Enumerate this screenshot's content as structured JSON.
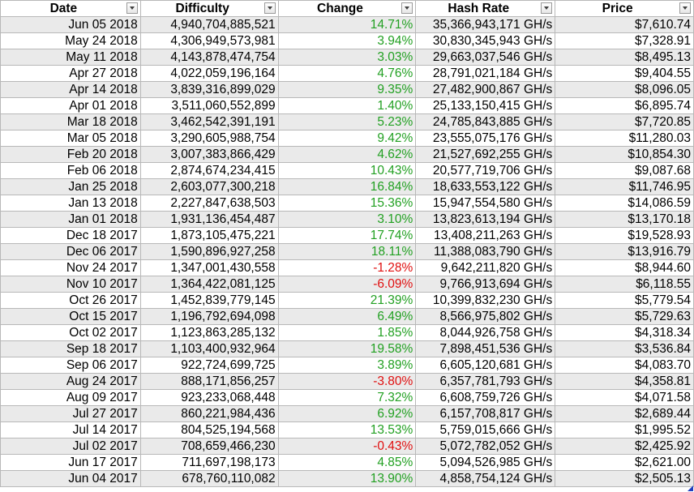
{
  "header": {
    "date": "Date",
    "difficulty": "Difficulty",
    "change": "Change",
    "hash_rate": "Hash Rate",
    "price": "Price"
  },
  "rows": [
    {
      "date": "Jun 05 2018",
      "difficulty": "4,940,704,885,521",
      "change": "14.71%",
      "hash_rate": "35,366,943,171 GH/s",
      "price": "$7,610.74"
    },
    {
      "date": "May 24 2018",
      "difficulty": "4,306,949,573,981",
      "change": "3.94%",
      "hash_rate": "30,830,345,943 GH/s",
      "price": "$7,328.91"
    },
    {
      "date": "May 11 2018",
      "difficulty": "4,143,878,474,754",
      "change": "3.03%",
      "hash_rate": "29,663,037,546 GH/s",
      "price": "$8,495.13"
    },
    {
      "date": "Apr 27 2018",
      "difficulty": "4,022,059,196,164",
      "change": "4.76%",
      "hash_rate": "28,791,021,184 GH/s",
      "price": "$9,404.55"
    },
    {
      "date": "Apr 14 2018",
      "difficulty": "3,839,316,899,029",
      "change": "9.35%",
      "hash_rate": "27,482,900,867 GH/s",
      "price": "$8,096.05"
    },
    {
      "date": "Apr 01 2018",
      "difficulty": "3,511,060,552,899",
      "change": "1.40%",
      "hash_rate": "25,133,150,415 GH/s",
      "price": "$6,895.74"
    },
    {
      "date": "Mar 18 2018",
      "difficulty": "3,462,542,391,191",
      "change": "5.23%",
      "hash_rate": "24,785,843,885 GH/s",
      "price": "$7,720.85"
    },
    {
      "date": "Mar 05 2018",
      "difficulty": "3,290,605,988,754",
      "change": "9.42%",
      "hash_rate": "23,555,075,176 GH/s",
      "price": "$11,280.03"
    },
    {
      "date": "Feb 20 2018",
      "difficulty": "3,007,383,866,429",
      "change": "4.62%",
      "hash_rate": "21,527,692,255 GH/s",
      "price": "$10,854.30"
    },
    {
      "date": "Feb 06 2018",
      "difficulty": "2,874,674,234,415",
      "change": "10.43%",
      "hash_rate": "20,577,719,706 GH/s",
      "price": "$9,087.68"
    },
    {
      "date": "Jan 25 2018",
      "difficulty": "2,603,077,300,218",
      "change": "16.84%",
      "hash_rate": "18,633,553,122 GH/s",
      "price": "$11,746.95"
    },
    {
      "date": "Jan 13 2018",
      "difficulty": "2,227,847,638,503",
      "change": "15.36%",
      "hash_rate": "15,947,554,580 GH/s",
      "price": "$14,086.59"
    },
    {
      "date": "Jan 01 2018",
      "difficulty": "1,931,136,454,487",
      "change": "3.10%",
      "hash_rate": "13,823,613,194 GH/s",
      "price": "$13,170.18"
    },
    {
      "date": "Dec 18 2017",
      "difficulty": "1,873,105,475,221",
      "change": "17.74%",
      "hash_rate": "13,408,211,263 GH/s",
      "price": "$19,528.93"
    },
    {
      "date": "Dec 06 2017",
      "difficulty": "1,590,896,927,258",
      "change": "18.11%",
      "hash_rate": "11,388,083,790 GH/s",
      "price": "$13,916.79"
    },
    {
      "date": "Nov 24 2017",
      "difficulty": "1,347,001,430,558",
      "change": "-1.28%",
      "hash_rate": "9,642,211,820 GH/s",
      "price": "$8,944.60"
    },
    {
      "date": "Nov 10 2017",
      "difficulty": "1,364,422,081,125",
      "change": "-6.09%",
      "hash_rate": "9,766,913,694 GH/s",
      "price": "$6,118.55"
    },
    {
      "date": "Oct 26 2017",
      "difficulty": "1,452,839,779,145",
      "change": "21.39%",
      "hash_rate": "10,399,832,230 GH/s",
      "price": "$5,779.54"
    },
    {
      "date": "Oct 15 2017",
      "difficulty": "1,196,792,694,098",
      "change": "6.49%",
      "hash_rate": "8,566,975,802 GH/s",
      "price": "$5,729.63"
    },
    {
      "date": "Oct 02 2017",
      "difficulty": "1,123,863,285,132",
      "change": "1.85%",
      "hash_rate": "8,044,926,758 GH/s",
      "price": "$4,318.34"
    },
    {
      "date": "Sep 18 2017",
      "difficulty": "1,103,400,932,964",
      "change": "19.58%",
      "hash_rate": "7,898,451,536 GH/s",
      "price": "$3,536.84"
    },
    {
      "date": "Sep 06 2017",
      "difficulty": "922,724,699,725",
      "change": "3.89%",
      "hash_rate": "6,605,120,681 GH/s",
      "price": "$4,083.70"
    },
    {
      "date": "Aug 24 2017",
      "difficulty": "888,171,856,257",
      "change": "-3.80%",
      "hash_rate": "6,357,781,793 GH/s",
      "price": "$4,358.81"
    },
    {
      "date": "Aug 09 2017",
      "difficulty": "923,233,068,448",
      "change": "7.32%",
      "hash_rate": "6,608,759,726 GH/s",
      "price": "$4,071.58"
    },
    {
      "date": "Jul 27 2017",
      "difficulty": "860,221,984,436",
      "change": "6.92%",
      "hash_rate": "6,157,708,817 GH/s",
      "price": "$2,689.44"
    },
    {
      "date": "Jul 14 2017",
      "difficulty": "804,525,194,568",
      "change": "13.53%",
      "hash_rate": "5,759,015,666 GH/s",
      "price": "$1,995.52"
    },
    {
      "date": "Jul 02 2017",
      "difficulty": "708,659,466,230",
      "change": "-0.43%",
      "hash_rate": "5,072,782,052 GH/s",
      "price": "$2,425.92"
    },
    {
      "date": "Jun 17 2017",
      "difficulty": "711,697,198,173",
      "change": "4.85%",
      "hash_rate": "5,094,526,985 GH/s",
      "price": "$2,621.00"
    },
    {
      "date": "Jun 04 2017",
      "difficulty": "678,760,110,082",
      "change": "13.90%",
      "hash_rate": "4,858,754,124 GH/s",
      "price": "$2,505.13"
    }
  ],
  "colors": {
    "positive": "#22a022",
    "negative": "#e01010",
    "alt_row": "#eaeaea",
    "gridline": "#b8b8b8"
  },
  "icons": {
    "filter": "chevron-down-icon",
    "fill_handle": "resize-corner-icon"
  }
}
